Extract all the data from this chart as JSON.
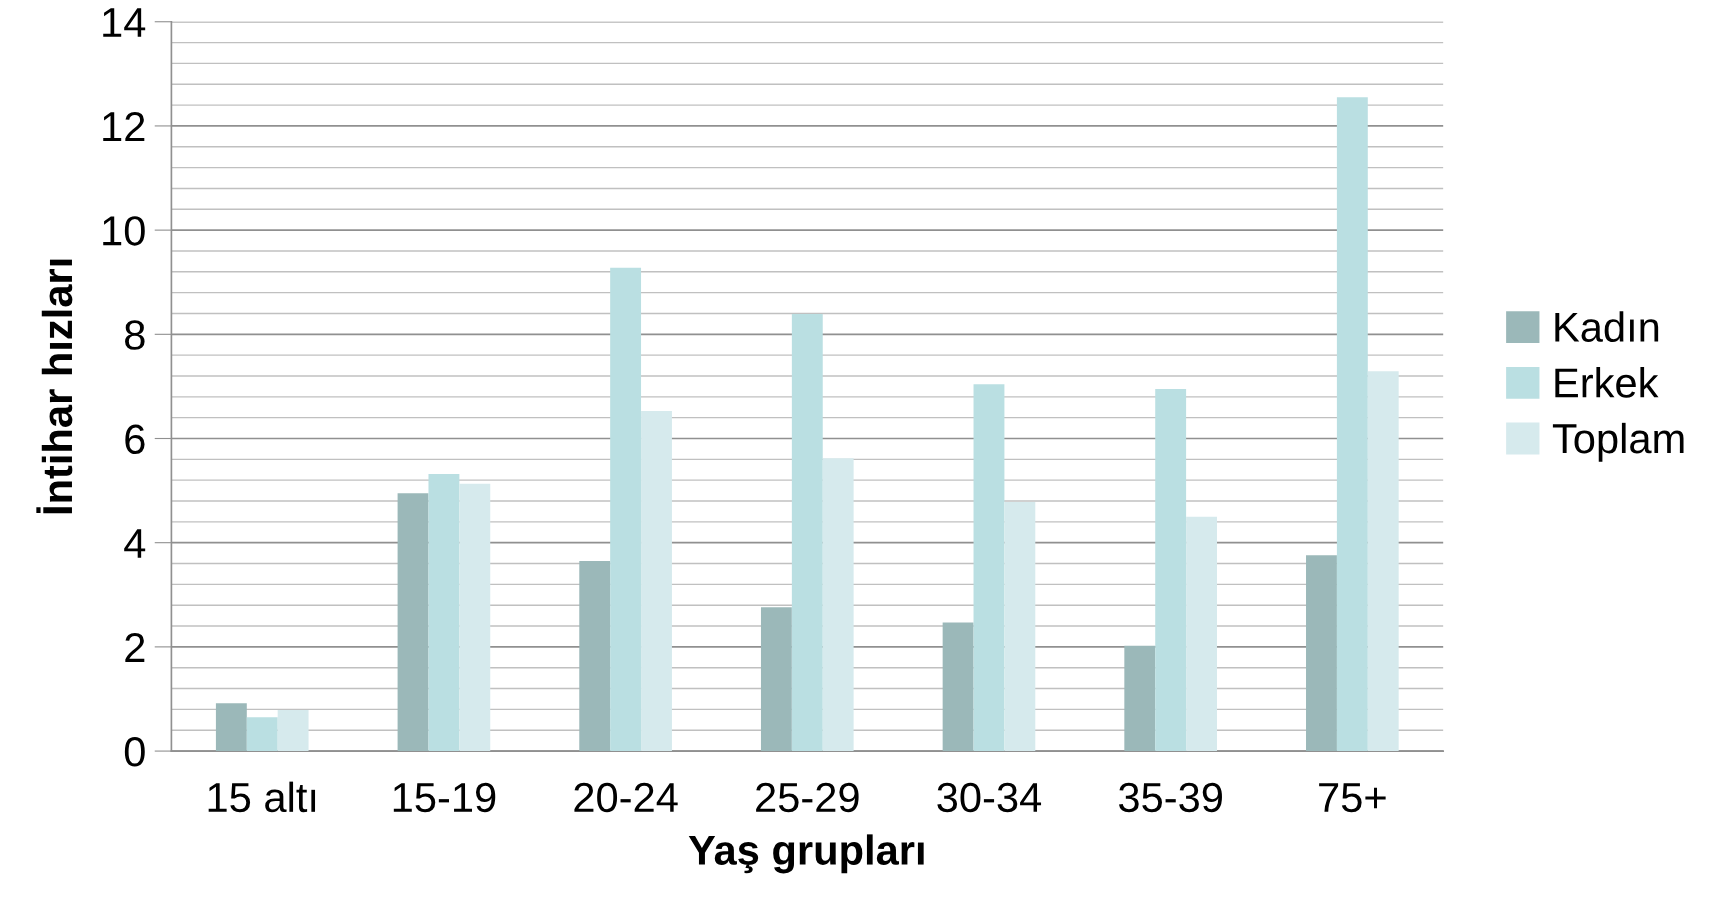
{
  "chart_data": {
    "type": "bar",
    "xlabel": "Yaş grupları",
    "ylabel": "İntihar hızları",
    "categories": [
      "15 altı",
      "15-19",
      "20-24",
      "25-29",
      "30-34",
      "35-39",
      "75+"
    ],
    "series": [
      {
        "name": "Kadın",
        "color": "#9bb8b9",
        "values": [
          0.92,
          4.95,
          3.65,
          2.76,
          2.47,
          2.02,
          3.76
        ]
      },
      {
        "name": "Erkek",
        "color": "#badfe2",
        "values": [
          0.65,
          5.32,
          9.28,
          8.39,
          7.04,
          6.95,
          12.55
        ]
      },
      {
        "name": "Toplam",
        "color": "#d6eaed",
        "values": [
          0.79,
          5.13,
          6.53,
          5.62,
          4.78,
          4.5,
          7.29
        ]
      }
    ],
    "ylim": [
      0,
      14
    ],
    "yticks": [
      0,
      2,
      4,
      6,
      8,
      10,
      12,
      14
    ],
    "grid": "y",
    "legend": "right"
  }
}
